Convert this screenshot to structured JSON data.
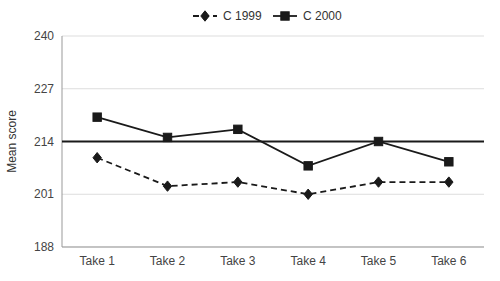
{
  "chart_data": {
    "type": "line",
    "categories": [
      "Take 1",
      "Take 2",
      "Take 3",
      "Take 4",
      "Take 5",
      "Take 6"
    ],
    "series": [
      {
        "name": "C 1999",
        "color": "#1a1a1a",
        "marker": "diamond",
        "line_style": "dashed",
        "values": [
          210,
          203,
          204,
          201,
          204,
          204
        ]
      },
      {
        "name": "C 2000",
        "color": "#1a1a1a",
        "marker": "square",
        "line_style": "solid",
        "values": [
          220,
          215,
          217,
          208,
          214,
          209
        ]
      }
    ],
    "mean_line": 214,
    "y_label": "Mean score",
    "ylim": [
      188,
      240
    ],
    "yticks": [
      188,
      201,
      214,
      227,
      240
    ],
    "grid": true,
    "legend": "top"
  }
}
